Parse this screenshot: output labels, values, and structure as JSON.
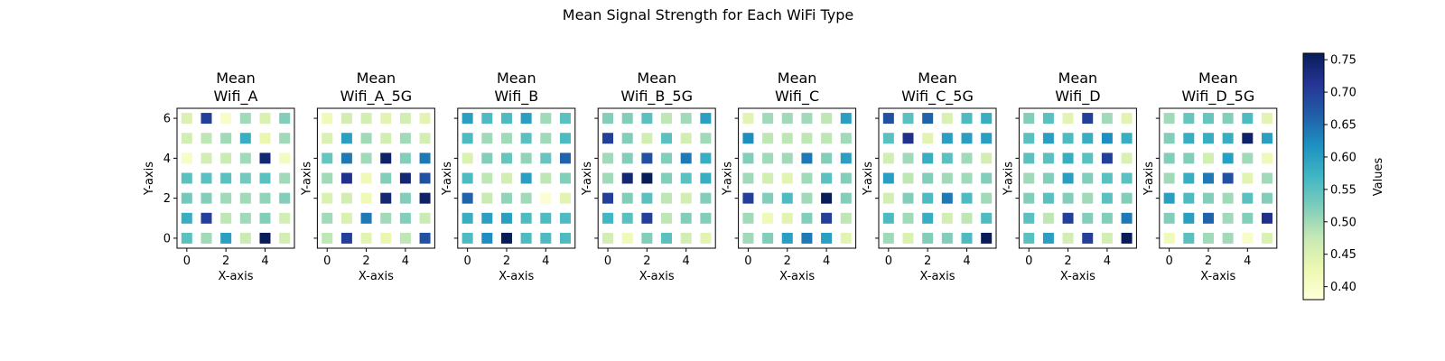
{
  "title": "Mean Signal Strength for Each WiFi Type",
  "colorbar": {
    "label": "Values",
    "range": [
      0.38,
      0.76
    ],
    "ticks": [
      0.4,
      0.45,
      0.5,
      0.55,
      0.6,
      0.65,
      0.7,
      0.75
    ],
    "colormap": "YlGnBu",
    "stops": [
      "#ffffd9",
      "#edf8b1",
      "#c7e9b4",
      "#7fcdbb",
      "#41b6c4",
      "#1d91c0",
      "#225ea8",
      "#253494",
      "#081d58"
    ]
  },
  "chart_data": {
    "type": "heatmap",
    "xlabel": "X-axis",
    "ylabel": "Y-axis",
    "x_ticks": [
      0,
      2,
      4
    ],
    "y_ticks": [
      0,
      2,
      4,
      6
    ],
    "x": [
      0,
      1,
      2,
      3,
      4,
      5
    ],
    "y": [
      0,
      1,
      2,
      3,
      4,
      5,
      6
    ],
    "panels": [
      {
        "title_line1": "Mean",
        "title_line2": "Wifi_A",
        "values": [
          [
            0.55,
            0.5,
            0.6,
            0.47,
            0.76,
            0.46
          ],
          [
            0.58,
            0.7,
            0.48,
            0.5,
            0.52,
            0.46
          ],
          [
            0.53,
            0.52,
            0.5,
            0.5,
            0.51,
            0.52
          ],
          [
            0.55,
            0.55,
            0.55,
            0.53,
            0.55,
            0.5
          ],
          [
            0.4,
            0.46,
            0.47,
            0.5,
            0.74,
            0.41
          ],
          [
            0.46,
            0.48,
            0.5,
            0.58,
            0.43,
            0.5
          ],
          [
            0.45,
            0.7,
            0.4,
            0.5,
            0.45,
            0.52
          ]
        ]
      },
      {
        "title_line1": "Mean",
        "title_line2": "Wifi_A_5G",
        "values": [
          [
            0.48,
            0.7,
            0.44,
            0.43,
            0.48,
            0.68
          ],
          [
            0.5,
            0.45,
            0.64,
            0.5,
            0.52,
            0.47
          ],
          [
            0.45,
            0.46,
            0.42,
            0.74,
            0.52,
            0.75
          ],
          [
            0.5,
            0.72,
            0.42,
            0.52,
            0.74,
            0.68
          ],
          [
            0.54,
            0.64,
            0.5,
            0.75,
            0.52,
            0.64
          ],
          [
            0.45,
            0.6,
            0.5,
            0.46,
            0.5,
            0.46
          ],
          [
            0.42,
            0.46,
            0.46,
            0.44,
            0.46,
            0.44
          ]
        ]
      },
      {
        "title_line1": "Mean",
        "title_line2": "Wifi_B",
        "values": [
          [
            0.56,
            0.62,
            0.76,
            0.56,
            0.56,
            0.56
          ],
          [
            0.58,
            0.6,
            0.6,
            0.56,
            0.56,
            0.56
          ],
          [
            0.66,
            0.47,
            0.51,
            0.5,
            0.39,
            0.44
          ],
          [
            0.56,
            0.48,
            0.46,
            0.6,
            0.48,
            0.52
          ],
          [
            0.45,
            0.52,
            0.54,
            0.51,
            0.54,
            0.66
          ],
          [
            0.56,
            0.5,
            0.5,
            0.55,
            0.5,
            0.56
          ],
          [
            0.6,
            0.56,
            0.56,
            0.6,
            0.5,
            0.55
          ]
        ]
      },
      {
        "title_line1": "Mean",
        "title_line2": "Wifi_B_5G",
        "values": [
          [
            0.46,
            0.42,
            0.52,
            0.55,
            0.46,
            0.44
          ],
          [
            0.57,
            0.55,
            0.7,
            0.48,
            0.52,
            0.52
          ],
          [
            0.7,
            0.52,
            0.55,
            0.48,
            0.46,
            0.52
          ],
          [
            0.5,
            0.74,
            0.76,
            0.52,
            0.55,
            0.58
          ],
          [
            0.5,
            0.52,
            0.68,
            0.52,
            0.64,
            0.58
          ],
          [
            0.7,
            0.52,
            0.46,
            0.55,
            0.46,
            0.5
          ],
          [
            0.52,
            0.52,
            0.55,
            0.48,
            0.5,
            0.6
          ]
        ]
      },
      {
        "title_line1": "Mean",
        "title_line2": "Wifi_C",
        "values": [
          [
            0.5,
            0.52,
            0.6,
            0.64,
            0.6,
            0.44
          ],
          [
            0.5,
            0.42,
            0.44,
            0.52,
            0.7,
            0.48
          ],
          [
            0.7,
            0.52,
            0.56,
            0.5,
            0.76,
            0.52
          ],
          [
            0.5,
            0.46,
            0.44,
            0.5,
            0.55,
            0.52
          ],
          [
            0.52,
            0.5,
            0.5,
            0.64,
            0.52,
            0.6
          ],
          [
            0.62,
            0.48,
            0.48,
            0.48,
            0.48,
            0.5
          ],
          [
            0.44,
            0.5,
            0.5,
            0.5,
            0.48,
            0.6
          ]
        ]
      },
      {
        "title_line1": "Mean",
        "title_line2": "Wifi_C_5G",
        "values": [
          [
            0.5,
            0.45,
            0.52,
            0.52,
            0.56,
            0.76
          ],
          [
            0.56,
            0.5,
            0.58,
            0.46,
            0.48,
            0.56
          ],
          [
            0.46,
            0.52,
            0.56,
            0.64,
            0.56,
            0.5
          ],
          [
            0.6,
            0.48,
            0.52,
            0.5,
            0.5,
            0.52
          ],
          [
            0.46,
            0.5,
            0.58,
            0.55,
            0.5,
            0.46
          ],
          [
            0.55,
            0.72,
            0.44,
            0.6,
            0.6,
            0.6
          ],
          [
            0.68,
            0.55,
            0.66,
            0.45,
            0.56,
            0.58
          ]
        ]
      },
      {
        "title_line1": "Mean",
        "title_line2": "Wifi_D",
        "values": [
          [
            0.55,
            0.6,
            0.46,
            0.7,
            0.46,
            0.76
          ],
          [
            0.55,
            0.48,
            0.7,
            0.52,
            0.52,
            0.64
          ],
          [
            0.52,
            0.55,
            0.52,
            0.5,
            0.55,
            0.52
          ],
          [
            0.5,
            0.52,
            0.6,
            0.52,
            0.55,
            0.55
          ],
          [
            0.55,
            0.55,
            0.58,
            0.55,
            0.7,
            0.45
          ],
          [
            0.55,
            0.6,
            0.56,
            0.58,
            0.62,
            0.58
          ],
          [
            0.52,
            0.55,
            0.44,
            0.7,
            0.5,
            0.44
          ]
        ]
      },
      {
        "title_line1": "Mean",
        "title_line2": "Wifi_D_5G",
        "values": [
          [
            0.42,
            0.55,
            0.5,
            0.5,
            0.4,
            0.45
          ],
          [
            0.52,
            0.6,
            0.66,
            0.5,
            0.52,
            0.72
          ],
          [
            0.6,
            0.56,
            0.52,
            0.5,
            0.55,
            0.52
          ],
          [
            0.5,
            0.58,
            0.64,
            0.68,
            0.44,
            0.5
          ],
          [
            0.52,
            0.52,
            0.46,
            0.6,
            0.5,
            0.42
          ],
          [
            0.52,
            0.58,
            0.58,
            0.58,
            0.75,
            0.6
          ],
          [
            0.5,
            0.54,
            0.54,
            0.52,
            0.56,
            0.44
          ]
        ]
      }
    ]
  }
}
